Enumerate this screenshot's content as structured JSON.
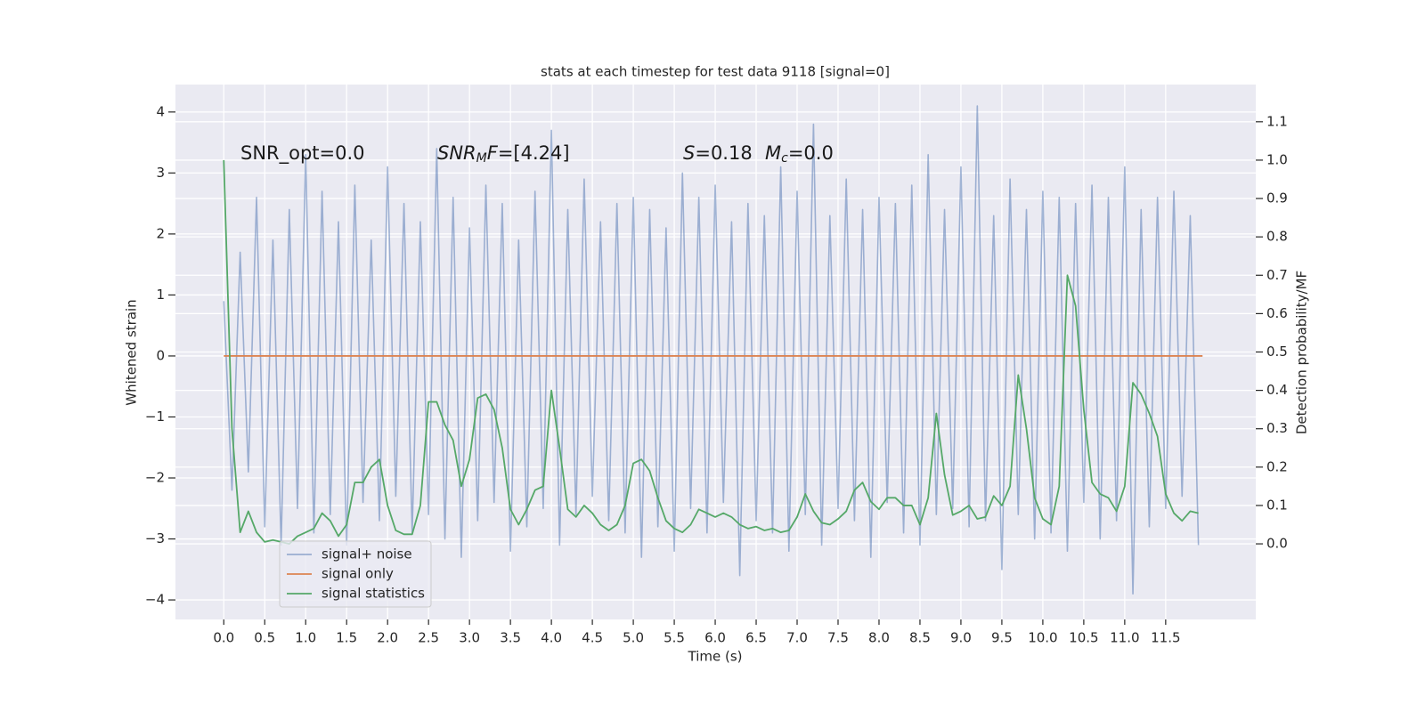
{
  "chart_data": {
    "type": "line",
    "title": "stats at each timestep for test data 9118 [signal=0]",
    "xlabel": "Time (s)",
    "ylabel": "Whitened strain",
    "y2label": "Detection probability/MF",
    "x": [
      0,
      0.1,
      0.2,
      0.3,
      0.4,
      0.5,
      0.6,
      0.7,
      0.8,
      0.9,
      1,
      1.1,
      1.2,
      1.3,
      1.4,
      1.5,
      1.6,
      1.7,
      1.8,
      1.9,
      2,
      2.1,
      2.2,
      2.3,
      2.4,
      2.5,
      2.6,
      2.7,
      2.8,
      2.9,
      3,
      3.1,
      3.2,
      3.3,
      3.4,
      3.5,
      3.6,
      3.7,
      3.8,
      3.9,
      4,
      4.1,
      4.2,
      4.3,
      4.4,
      4.5,
      4.6,
      4.7,
      4.8,
      4.9,
      5,
      5.1,
      5.2,
      5.3,
      5.4,
      5.5,
      5.6,
      5.7,
      5.8,
      5.9,
      6,
      6.1,
      6.2,
      6.3,
      6.4,
      6.5,
      6.6,
      6.7,
      6.8,
      6.9,
      7,
      7.1,
      7.2,
      7.3,
      7.4,
      7.5,
      7.6,
      7.7,
      7.8,
      7.9,
      8,
      8.1,
      8.2,
      8.3,
      8.4,
      8.5,
      8.6,
      8.7,
      8.8,
      8.9,
      9,
      9.1,
      9.2,
      9.3,
      9.4,
      9.5,
      9.6,
      9.7,
      9.8,
      9.9,
      10,
      10.1,
      10.2,
      10.3,
      10.4,
      10.5,
      10.6,
      10.7,
      10.8,
      10.9,
      11,
      11.1,
      11.2,
      11.3,
      11.4,
      11.5,
      11.6,
      11.7,
      11.8,
      11.9
    ],
    "series": [
      {
        "name": "signal+ noise",
        "color": "#4c72b0",
        "alpha": 0.5,
        "values": [
          0.9,
          -2.2,
          1.7,
          -1.9,
          2.6,
          -2.8,
          1.9,
          -3.1,
          2.4,
          -2.5,
          3.3,
          -2.9,
          2.7,
          -2.6,
          2.2,
          -3.1,
          2.8,
          -2.4,
          1.9,
          -2.7,
          3.1,
          -2.3,
          2.5,
          -2.9,
          2.2,
          -2.6,
          3.4,
          -3.0,
          2.6,
          -3.3,
          2.1,
          -2.7,
          2.8,
          -2.4,
          2.5,
          -3.2,
          1.9,
          -2.8,
          2.7,
          -2.5,
          3.7,
          -3.1,
          2.4,
          -2.6,
          2.9,
          -2.3,
          2.2,
          -2.7,
          2.5,
          -2.9,
          2.6,
          -3.3,
          2.4,
          -2.8,
          2.1,
          -3.2,
          3.0,
          -2.5,
          2.6,
          -2.9,
          2.8,
          -2.4,
          2.2,
          -3.6,
          2.5,
          -2.7,
          2.3,
          -2.9,
          3.1,
          -3.2,
          2.7,
          -2.6,
          3.8,
          -3.1,
          2.3,
          -2.5,
          2.9,
          -2.7,
          2.4,
          -3.3,
          2.6,
          -2.4,
          2.5,
          -2.9,
          2.8,
          -3.1,
          3.3,
          -2.6,
          2.4,
          -2.5,
          3.1,
          -2.8,
          4.1,
          -2.7,
          2.3,
          -3.5,
          2.9,
          -2.6,
          2.4,
          -3.0,
          2.7,
          -2.9,
          2.6,
          -3.2,
          2.5,
          -2.4,
          2.8,
          -3.0,
          2.6,
          -2.7,
          3.1,
          -3.9,
          2.4,
          -2.8,
          2.6,
          -2.5,
          2.7,
          -2.3,
          2.3,
          -3.1
        ]
      },
      {
        "name": "signal only",
        "color": "#dd8452",
        "x": [
          0,
          11.95
        ],
        "values": [
          0,
          0
        ]
      },
      {
        "name": "signal statistics",
        "color": "#55a868",
        "axis": "y2",
        "values": [
          1.0,
          0.3,
          0.03,
          0.085,
          0.03,
          0.005,
          0.01,
          0.005,
          0.0,
          0.02,
          0.03,
          0.04,
          0.08,
          0.06,
          0.02,
          0.05,
          0.16,
          0.16,
          0.2,
          0.22,
          0.1,
          0.035,
          0.025,
          0.025,
          0.1,
          0.37,
          0.37,
          0.31,
          0.27,
          0.15,
          0.22,
          0.38,
          0.39,
          0.35,
          0.25,
          0.09,
          0.05,
          0.09,
          0.14,
          0.15,
          0.4,
          0.25,
          0.09,
          0.07,
          0.1,
          0.08,
          0.05,
          0.035,
          0.05,
          0.1,
          0.21,
          0.22,
          0.19,
          0.12,
          0.06,
          0.04,
          0.03,
          0.05,
          0.09,
          0.08,
          0.07,
          0.08,
          0.07,
          0.05,
          0.04,
          0.045,
          0.035,
          0.04,
          0.03,
          0.035,
          0.07,
          0.13,
          0.085,
          0.055,
          0.05,
          0.065,
          0.085,
          0.14,
          0.16,
          0.11,
          0.09,
          0.12,
          0.12,
          0.1,
          0.1,
          0.05,
          0.12,
          0.34,
          0.18,
          0.075,
          0.085,
          0.1,
          0.065,
          0.07,
          0.125,
          0.1,
          0.15,
          0.44,
          0.3,
          0.12,
          0.065,
          0.05,
          0.15,
          0.7,
          0.62,
          0.35,
          0.16,
          0.13,
          0.12,
          0.085,
          0.15,
          0.42,
          0.39,
          0.34,
          0.28,
          0.13,
          0.08,
          0.06,
          0.085,
          0.08
        ]
      }
    ],
    "xlim": [
      -0.59,
      12.6
    ],
    "ylim": [
      -4.32,
      4.45
    ],
    "y2lim": [
      -0.197,
      1.197
    ],
    "xticks": [
      {
        "value": 0,
        "label": "0.0"
      },
      0.5,
      {
        "value": 1,
        "label": "1.0"
      },
      1.5,
      {
        "value": 2,
        "label": "2.0"
      },
      2.5,
      {
        "value": 3,
        "label": "3.0"
      },
      3.5,
      {
        "value": 4,
        "label": "4.0"
      },
      4.5,
      {
        "value": 5,
        "label": "5.0"
      },
      5.5,
      {
        "value": 6,
        "label": "6.0"
      },
      6.5,
      {
        "value": 7,
        "label": "7.0"
      },
      7.5,
      {
        "value": 8,
        "label": "8.0"
      },
      8.5,
      {
        "value": 9,
        "label": "9.0"
      },
      9.5,
      {
        "value": 10,
        "label": "10.0"
      },
      10.5,
      {
        "value": 11,
        "label": "11.0"
      },
      11.5
    ],
    "yticks": [
      {
        "value": -4,
        "label": "−4"
      },
      {
        "value": -3,
        "label": "−3"
      },
      {
        "value": -2,
        "label": "−2"
      },
      {
        "value": -1,
        "label": "−1"
      },
      0,
      1,
      2,
      3,
      4
    ],
    "y2ticks": [
      {
        "value": 0,
        "label": "0.0"
      },
      0.1,
      0.2,
      0.3,
      0.4,
      0.5,
      0.6,
      0.7,
      0.8,
      0.9,
      {
        "value": 1,
        "label": "1.0"
      },
      1.1
    ],
    "grid": true,
    "legend": "lower left",
    "annotations": [
      {
        "parts": [
          {
            "text": "SNR_opt=0.0"
          }
        ]
      },
      {
        "parts": [
          {
            "text": "SNR",
            "italic": true
          },
          {
            "text": "M",
            "italic": true,
            "sub": true
          },
          {
            "text": "F",
            "italic": true
          },
          {
            "text": "=[4.24]"
          }
        ]
      },
      {
        "parts": [
          {
            "text": "S",
            "italic": true
          },
          {
            "text": "=0.18"
          }
        ]
      },
      {
        "parts": [
          {
            "text": "M",
            "italic": true
          },
          {
            "text": "c",
            "italic": true,
            "sub": true
          },
          {
            "text": "=0.0"
          }
        ]
      }
    ]
  }
}
